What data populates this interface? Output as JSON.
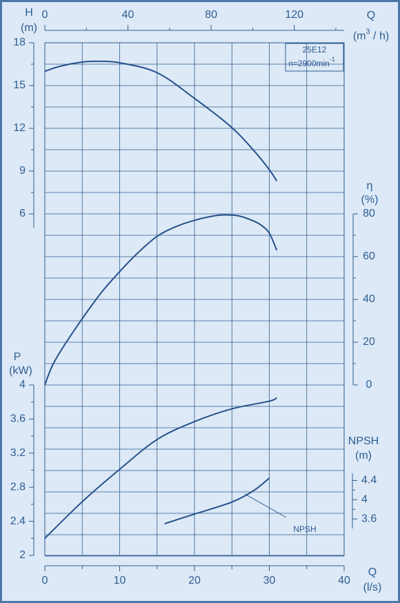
{
  "chart_data": {
    "type": "line",
    "xlim": [
      0,
      40
    ],
    "xticks": [
      0,
      10,
      20,
      30,
      40
    ],
    "xlabel": "Q",
    "xunit": "(l/s)",
    "x2lim": [
      0,
      144
    ],
    "x2ticks": [
      0,
      40,
      80,
      120
    ],
    "x2label": "Q",
    "x2unit": [
      "(m",
      "3",
      " / h)"
    ],
    "axes": {
      "H": {
        "label": "H",
        "unit": "(m)",
        "lim": [
          6,
          18
        ],
        "ticks": [
          6,
          9,
          12,
          15,
          18
        ]
      },
      "eta": {
        "label": "η",
        "unit": "(%)",
        "lim": [
          0,
          80
        ],
        "ticks": [
          0,
          20,
          40,
          60,
          80
        ]
      },
      "P": {
        "label": "P",
        "unit": "(kW)",
        "lim": [
          2,
          4
        ],
        "ticks": [
          2,
          {
            "value": 2.4,
            "label": "2.4"
          },
          {
            "value": 2.8,
            "label": "2.8"
          },
          {
            "value": 3.2,
            "label": "3.2"
          },
          {
            "value": 3.6,
            "label": "3.6"
          },
          4
        ]
      },
      "NPSH": {
        "label": "NPSH",
        "unit": "(m)",
        "lim": [
          3.4,
          4.55
        ],
        "ticks": [
          {
            "value": 3.6,
            "label": "3.6"
          },
          4,
          {
            "value": 4.4,
            "label": "4.4"
          }
        ]
      }
    },
    "note": [
      "25E12",
      [
        "n=2900min",
        "-1"
      ]
    ],
    "annotation": "NPSH",
    "series": [
      {
        "axis": "H",
        "color": "#24508a",
        "x": [
          0,
          2,
          5,
          7,
          10,
          15,
          20,
          25,
          28,
          30,
          31
        ],
        "values": [
          16,
          16.35,
          16.65,
          16.7,
          16.6,
          15.9,
          14.1,
          12.05,
          10.4,
          9.1,
          8.3
        ]
      },
      {
        "axis": "eta",
        "color": "#24508a",
        "x": [
          0,
          1,
          2.5,
          5,
          7.5,
          10,
          12.5,
          15,
          17.5,
          20,
          22.5,
          24,
          26,
          28,
          29,
          30,
          31
        ],
        "values": [
          0,
          9,
          18,
          31,
          43,
          53,
          62,
          69.5,
          74,
          77,
          79,
          79.5,
          79,
          76.5,
          74.5,
          71,
          63
        ]
      },
      {
        "axis": "P",
        "color": "#24508a",
        "x": [
          0,
          5,
          10,
          15,
          20,
          25,
          30,
          31
        ],
        "values": [
          2.2,
          2.63,
          3.01,
          3.36,
          3.57,
          3.72,
          3.81,
          3.85
        ]
      },
      {
        "axis": "NPSH",
        "color": "#24508a",
        "x": [
          16,
          20,
          25,
          28,
          30
        ],
        "values": [
          3.5,
          3.7,
          3.95,
          4.2,
          4.45
        ]
      }
    ]
  }
}
